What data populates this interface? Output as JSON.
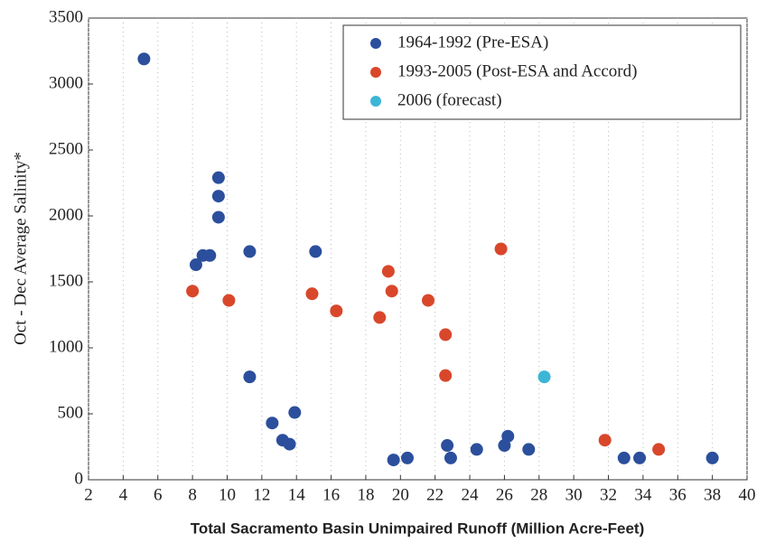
{
  "chart_data": {
    "type": "scatter",
    "xlabel": "Total Sacramento Basin Unimpaired Runoff (Million Acre-Feet)",
    "ylabel": "Oct - Dec Average Salinity*",
    "xlim": [
      2,
      40
    ],
    "ylim": [
      0,
      3500
    ],
    "xticks": [
      2,
      4,
      6,
      8,
      10,
      12,
      14,
      16,
      18,
      20,
      22,
      24,
      26,
      28,
      30,
      32,
      34,
      36,
      38,
      40
    ],
    "yticks": [
      0,
      500,
      1000,
      1500,
      2000,
      2500,
      3000,
      3500
    ],
    "grid": true,
    "legend": "top-right",
    "series": [
      {
        "name": "1964-1992 (Pre-ESA)",
        "color": "#2b4f9c",
        "x": [
          5.2,
          8.2,
          8.6,
          9.0,
          9.5,
          9.5,
          9.5,
          11.3,
          11.3,
          12.6,
          13.2,
          13.6,
          13.9,
          15.1,
          19.6,
          20.4,
          22.7,
          22.9,
          24.4,
          26.0,
          26.2,
          27.4,
          32.9,
          33.8,
          38.0
        ],
        "values": [
          3190,
          1630,
          1700,
          1700,
          2290,
          2150,
          1990,
          1730,
          780,
          430,
          300,
          270,
          510,
          1730,
          150,
          165,
          260,
          165,
          230,
          260,
          330,
          230,
          165,
          165,
          165
        ]
      },
      {
        "name": "1993-2005 (Post-ESA and Accord)",
        "color": "#d9472b",
        "x": [
          8.0,
          10.1,
          14.9,
          16.3,
          18.8,
          19.3,
          19.5,
          21.6,
          22.6,
          22.6,
          25.8,
          31.8,
          34.9
        ],
        "values": [
          1430,
          1360,
          1410,
          1280,
          1230,
          1580,
          1430,
          1360,
          1100,
          790,
          1750,
          300,
          230
        ]
      },
      {
        "name": "2006 (forecast)",
        "color": "#3cb6d6",
        "x": [
          28.3
        ],
        "values": [
          780
        ]
      }
    ]
  }
}
